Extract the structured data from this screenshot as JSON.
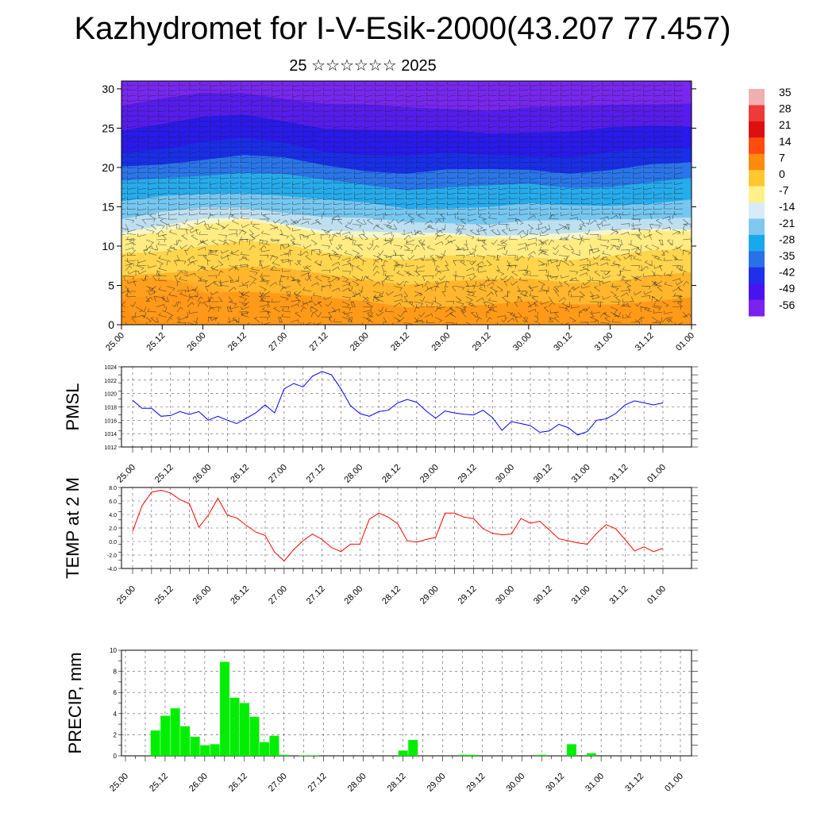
{
  "page": {
    "title": "Kazhydromet for I-V-Esik-2000(43.207 77.457)",
    "subtitle": "25 ☆☆☆☆☆☆ 2025"
  },
  "chart_data": [
    {
      "type": "heatmap",
      "name": "cross-section",
      "title": "",
      "x_ticks": [
        "25.00",
        "25.12",
        "26.00",
        "26.12",
        "27.00",
        "27.12",
        "28.00",
        "28.12",
        "29.00",
        "29.12",
        "30.00",
        "30.12",
        "31.00",
        "31.12",
        "01.00"
      ],
      "y_ticks": [
        "0",
        "5",
        "10",
        "15",
        "20",
        "25",
        "30"
      ],
      "ylim": [
        0,
        31
      ],
      "colorbar": {
        "labels": [
          "35",
          "28",
          "21",
          "14",
          "7",
          "0",
          "-7",
          "-14",
          "-21",
          "-28",
          "-35",
          "-42",
          "-49",
          "-56"
        ],
        "colors": [
          "#f0b0b0",
          "#ee3a38",
          "#dd1010",
          "#ff4a10",
          "#ff8a10",
          "#ffc830",
          "#fff08a",
          "#d8ecf8",
          "#80c8f0",
          "#18a8ec",
          "#2a70e8",
          "#2030ea",
          "#4814ee",
          "#7a22ee"
        ]
      },
      "freezing_level": [
        12,
        12.6,
        13.2,
        13.5,
        13,
        12.2,
        11.8,
        11.4,
        11.6,
        11.5,
        11.7,
        11.5,
        11.8,
        12.2,
        12.4
      ],
      "layers": [
        "#ff9a18",
        "#ffb830",
        "#ffd850",
        "#ffee88",
        "#f4f6d0",
        "#b8dcf2",
        "#70c4f0",
        "#20a8ec",
        "#2a70e8",
        "#1828e8",
        "#2a18ea",
        "#5a1cec",
        "#7a28ee"
      ]
    },
    {
      "type": "line",
      "name": "pmsl",
      "ylabel": "PMSL",
      "color": "#0000ff",
      "ylim": [
        1012,
        1024
      ],
      "y_ticks": [
        "1012",
        "1014",
        "1016",
        "1018",
        "1020",
        "1022",
        "1024"
      ],
      "x_ticks": [
        "25.00",
        "25.12",
        "26.00",
        "26.12",
        "27.00",
        "27.12",
        "28.00",
        "28.12",
        "29.00",
        "29.12",
        "30.00",
        "30.12",
        "31.00",
        "31.12",
        "01.00"
      ],
      "values": [
        1019,
        1017.8,
        1017.8,
        1016.6,
        1016.7,
        1017.3,
        1016.9,
        1017.3,
        1016,
        1016.6,
        1016,
        1015.5,
        1016.3,
        1017.1,
        1018.3,
        1017.1,
        1020.7,
        1021.5,
        1021,
        1022.6,
        1023.3,
        1022.8,
        1020.7,
        1018.2,
        1017,
        1016.6,
        1017.3,
        1017.5,
        1018.6,
        1019.1,
        1018.7,
        1017.4,
        1016.3,
        1017.4,
        1017.1,
        1016.9,
        1016.8,
        1017.5,
        1016.4,
        1014.5,
        1015.8,
        1015.5,
        1015.2,
        1014.2,
        1014.4,
        1015.4,
        1014.9,
        1013.8,
        1014.3,
        1016,
        1016.2,
        1017,
        1018.3,
        1018.9,
        1018.6,
        1018.3,
        1018.6
      ]
    },
    {
      "type": "line",
      "name": "temp",
      "ylabel": "TEMP at 2 M",
      "color": "#ff0000",
      "ylim": [
        -4,
        8
      ],
      "y_ticks": [
        "-4.0",
        "-2.0",
        "0.0",
        "2.0",
        "4.0",
        "6.0",
        "8.0"
      ],
      "x_ticks": [
        "25.00",
        "25.12",
        "26.00",
        "26.12",
        "27.00",
        "27.12",
        "28.00",
        "28.12",
        "29.00",
        "29.12",
        "30.00",
        "30.12",
        "31.00",
        "31.12",
        "01.00"
      ],
      "values": [
        1.5,
        5.3,
        7.3,
        7.6,
        7.2,
        6.2,
        5.6,
        2.1,
        3.9,
        6.4,
        3.9,
        3.5,
        2.4,
        1.4,
        0.9,
        -1.6,
        -2.9,
        -1.2,
        0.1,
        1.1,
        0.3,
        -0.9,
        -1.5,
        -0.4,
        -0.4,
        3.3,
        4.2,
        3.6,
        2.6,
        0.1,
        -0.1,
        0.3,
        0.6,
        4.2,
        4.2,
        3.6,
        3.4,
        1.9,
        1.2,
        1.0,
        1.1,
        3.4,
        2.7,
        3.0,
        1.7,
        0.4,
        0.1,
        -0.2,
        -0.4,
        1.2,
        2.5,
        1.9,
        0.3,
        -1.4,
        -0.8,
        -1.5,
        -1.0
      ]
    },
    {
      "type": "bar",
      "name": "precip",
      "ylabel": "PRECIP, mm",
      "color": "#00ee00",
      "ylim": [
        0,
        10
      ],
      "y_ticks": [
        "0",
        "2",
        "4",
        "6",
        "8",
        "10"
      ],
      "x_ticks": [
        "25.00",
        "25.12",
        "26.00",
        "26.12",
        "27.00",
        "27.12",
        "28.00",
        "28.12",
        "29.00",
        "29.12",
        "30.00",
        "30.12",
        "31.00",
        "31.12",
        "01.00"
      ],
      "values": [
        0,
        0,
        0,
        2.4,
        3.8,
        4.5,
        2.8,
        1.8,
        1.0,
        1.1,
        8.9,
        5.5,
        5.0,
        3.7,
        1.3,
        1.9,
        0.1,
        0,
        0.05,
        0.05,
        0,
        0,
        0,
        0,
        0,
        0,
        0,
        0,
        0.5,
        1.5,
        0,
        0,
        0,
        0,
        0.1,
        0.1,
        0,
        0,
        0,
        0,
        0,
        0,
        0.1,
        0,
        0,
        1.1,
        0,
        0.25,
        0,
        0,
        0,
        0,
        0,
        0,
        0,
        0,
        0
      ]
    }
  ]
}
